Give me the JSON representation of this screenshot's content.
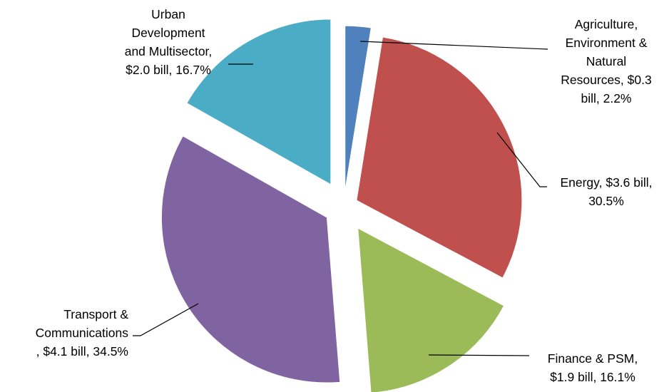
{
  "chart_data": {
    "type": "pie",
    "exploded": true,
    "start_angle_deg": 0,
    "direction": "clockwise",
    "slices": [
      {
        "name": "Agriculture, Environment & Natural Resources",
        "value_bill": 0.3,
        "percent": 2.2,
        "color": "#4F81BD",
        "label_lines": [
          "Agriculture,",
          "Environment &",
          "Natural",
          "Resources, $0.3",
          "bill,  2.2%"
        ]
      },
      {
        "name": "Energy",
        "value_bill": 3.6,
        "percent": 30.5,
        "color": "#C0504D",
        "label_lines": [
          "Energy, $3.6 bill,",
          "30.5%"
        ]
      },
      {
        "name": "Finance & PSM",
        "value_bill": 1.9,
        "percent": 16.1,
        "color": "#9BBB59",
        "label_lines": [
          "Finance & PSM,",
          "$1.9 bill, 16.1%"
        ]
      },
      {
        "name": "Transport & Communications",
        "value_bill": 4.1,
        "percent": 34.5,
        "color": "#8064A2",
        "label_lines": [
          "Transport &",
          "Communications",
          ", $4.1 bill, 34.5%"
        ]
      },
      {
        "name": "Urban Development and Multisector",
        "value_bill": 2.0,
        "percent": 16.7,
        "color": "#4BACC6",
        "label_lines": [
          "Urban",
          "Development",
          "and Multisector,",
          "$2.0 bill, 16.7%"
        ]
      }
    ]
  }
}
